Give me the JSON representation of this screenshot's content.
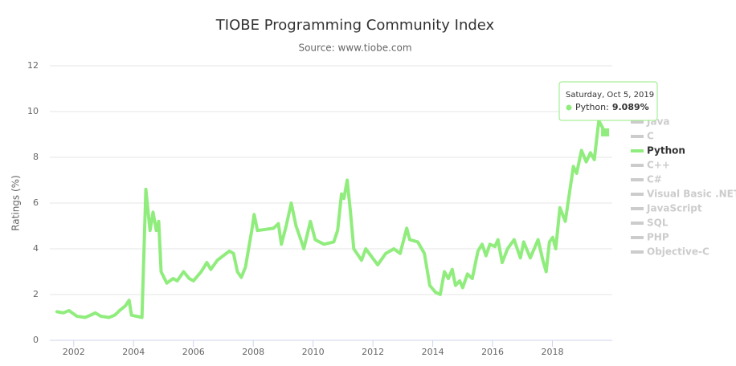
{
  "chart_data": {
    "type": "line",
    "title": "TIOBE Programming Community Index",
    "subtitle": "Source: www.tiobe.com",
    "y_label": "Ratings (%)",
    "xlim": [
      2001.2,
      2020
    ],
    "xticks": [
      2002,
      2004,
      2006,
      2008,
      2010,
      2012,
      2014,
      2016,
      2018
    ],
    "ylim": [
      0,
      12
    ],
    "yticks": [
      0,
      2,
      4,
      6,
      8,
      10,
      12
    ],
    "grid": true,
    "series": [
      {
        "name": "Python",
        "color": "#90ed7d",
        "x": [
          2001.44,
          2001.65,
          2001.84,
          2002.11,
          2002.38,
          2002.56,
          2002.72,
          2002.91,
          2003.18,
          2003.37,
          2003.53,
          2003.72,
          2003.85,
          2003.93,
          2004.28,
          2004.41,
          2004.55,
          2004.65,
          2004.76,
          2004.84,
          2004.92,
          2005.11,
          2005.32,
          2005.46,
          2005.67,
          2005.86,
          2006.0,
          2006.26,
          2006.45,
          2006.58,
          2006.8,
          2007.2,
          2007.34,
          2007.47,
          2007.6,
          2007.74,
          2007.87,
          2007.95,
          2008.03,
          2008.14,
          2008.68,
          2008.84,
          2008.94,
          2009.1,
          2009.27,
          2009.43,
          2009.59,
          2009.69,
          2009.91,
          2010.07,
          2010.36,
          2010.69,
          2010.82,
          2010.95,
          2011.03,
          2011.14,
          2011.25,
          2011.36,
          2011.62,
          2011.76,
          2012.16,
          2012.43,
          2012.7,
          2012.91,
          2013.13,
          2013.23,
          2013.5,
          2013.72,
          2013.9,
          2014.09,
          2014.25,
          2014.39,
          2014.52,
          2014.65,
          2014.76,
          2014.9,
          2015.0,
          2015.16,
          2015.32,
          2015.51,
          2015.65,
          2015.78,
          2015.91,
          2016.08,
          2016.18,
          2016.32,
          2016.5,
          2016.72,
          2016.93,
          2017.04,
          2017.26,
          2017.52,
          2017.68,
          2017.79,
          2017.9,
          2018.01,
          2018.11,
          2018.25,
          2018.43,
          2018.7,
          2018.81,
          2018.97,
          2019.13,
          2019.27,
          2019.4,
          2019.55,
          2019.76
        ],
        "values": [
          1.25,
          1.2,
          1.3,
          1.05,
          1.0,
          1.1,
          1.2,
          1.05,
          1.0,
          1.1,
          1.3,
          1.5,
          1.75,
          1.1,
          1.0,
          6.6,
          4.8,
          5.6,
          4.8,
          5.2,
          3.0,
          2.5,
          2.7,
          2.6,
          3.0,
          2.7,
          2.6,
          3.0,
          3.4,
          3.1,
          3.5,
          3.9,
          3.8,
          3.0,
          2.75,
          3.2,
          4.2,
          4.8,
          5.5,
          4.8,
          4.9,
          5.1,
          4.2,
          5.0,
          6.0,
          5.0,
          4.4,
          4.0,
          5.2,
          4.4,
          4.2,
          4.3,
          4.8,
          6.4,
          6.2,
          7.0,
          5.6,
          4.0,
          3.5,
          4.0,
          3.3,
          3.8,
          4.0,
          3.8,
          4.9,
          4.4,
          4.3,
          3.8,
          2.4,
          2.1,
          2.0,
          3.0,
          2.7,
          3.1,
          2.4,
          2.6,
          2.3,
          2.9,
          2.7,
          3.9,
          4.2,
          3.7,
          4.2,
          4.1,
          4.4,
          3.4,
          4.0,
          4.4,
          3.6,
          4.3,
          3.6,
          4.4,
          3.5,
          3.0,
          4.3,
          4.5,
          4.0,
          5.8,
          5.2,
          7.6,
          7.3,
          8.3,
          7.8,
          8.2,
          7.9,
          9.6,
          9.089
        ]
      }
    ],
    "legend": [
      {
        "name": "Java",
        "visible": false
      },
      {
        "name": "C",
        "visible": false
      },
      {
        "name": "Python",
        "visible": true
      },
      {
        "name": "C++",
        "visible": false
      },
      {
        "name": "C#",
        "visible": false
      },
      {
        "name": "Visual Basic .NET",
        "visible": false
      },
      {
        "name": "JavaScript",
        "visible": false
      },
      {
        "name": "SQL",
        "visible": false
      },
      {
        "name": "PHP",
        "visible": false
      },
      {
        "name": "Objective-C",
        "visible": false
      }
    ],
    "tooltip": {
      "date": "Saturday, Oct 5, 2019",
      "series": "Python:",
      "x": 2019.76,
      "value": 9.089,
      "label": "9.089%"
    }
  }
}
